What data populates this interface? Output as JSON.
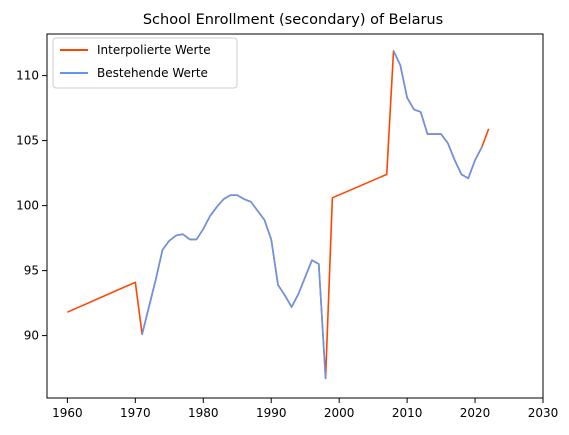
{
  "chart_data": {
    "type": "line",
    "title": "School Enrollment (secondary) of Belarus",
    "xlabel": "",
    "ylabel": "",
    "xlim": [
      1957,
      2030
    ],
    "ylim": [
      85.2,
      113.2
    ],
    "x_ticks": [
      1960,
      1970,
      1980,
      1990,
      2000,
      2010,
      2020,
      2030
    ],
    "y_ticks": [
      90,
      95,
      100,
      105,
      110
    ],
    "grid": false,
    "legend_position": "top-left",
    "series": [
      {
        "name": "Interpolierte Werte",
        "color": "#ff4500",
        "x": [
          1960,
          1970,
          1971,
          1972,
          1973,
          1974,
          1975,
          1976,
          1977,
          1978,
          1979,
          1980,
          1981,
          1982,
          1983,
          1984,
          1985,
          1986,
          1987,
          1988,
          1989,
          1990,
          1991,
          1992,
          1993,
          1994,
          1995,
          1996,
          1997,
          1998,
          1999,
          2007,
          2008,
          2009,
          2010,
          2011,
          2012,
          2013,
          2014,
          2015,
          2016,
          2017,
          2018,
          2019,
          2020,
          2021,
          2022
        ],
        "y": [
          91.8,
          94.1,
          90.1,
          92.2,
          94.3,
          96.6,
          97.3,
          97.7,
          97.8,
          97.4,
          97.4,
          98.2,
          99.2,
          99.9,
          100.5,
          100.8,
          100.8,
          100.5,
          100.3,
          99.6,
          98.9,
          97.4,
          93.9,
          93.1,
          92.2,
          93.2,
          94.5,
          95.8,
          95.5,
          86.7,
          100.6,
          102.4,
          111.9,
          110.8,
          108.3,
          107.4,
          107.2,
          105.5,
          105.5,
          105.5,
          104.8,
          103.5,
          102.4,
          102.1,
          103.5,
          104.5,
          105.9
        ]
      },
      {
        "name": "Bestehende Werte",
        "color": "#6495ed",
        "segments": [
          {
            "x": [
              1971,
              1972,
              1973,
              1974,
              1975,
              1976,
              1977,
              1978,
              1979,
              1980,
              1981,
              1982,
              1983,
              1984,
              1985,
              1986,
              1987,
              1988,
              1989,
              1990,
              1991,
              1992,
              1993,
              1994,
              1995,
              1996,
              1997,
              1998
            ],
            "y": [
              90.1,
              92.2,
              94.3,
              96.6,
              97.3,
              97.7,
              97.8,
              97.4,
              97.4,
              98.2,
              99.2,
              99.9,
              100.5,
              100.8,
              100.8,
              100.5,
              100.3,
              99.6,
              98.9,
              97.4,
              93.9,
              93.1,
              92.2,
              93.2,
              94.5,
              95.8,
              95.5,
              86.7
            ]
          },
          {
            "x": [
              2008,
              2009,
              2010,
              2011,
              2012,
              2013,
              2014,
              2015,
              2016,
              2017,
              2018,
              2019,
              2020,
              2021
            ],
            "y": [
              111.9,
              110.8,
              108.3,
              107.4,
              107.2,
              105.5,
              105.5,
              105.5,
              104.8,
              103.5,
              102.4,
              102.1,
              103.5,
              104.5
            ]
          }
        ]
      }
    ]
  }
}
